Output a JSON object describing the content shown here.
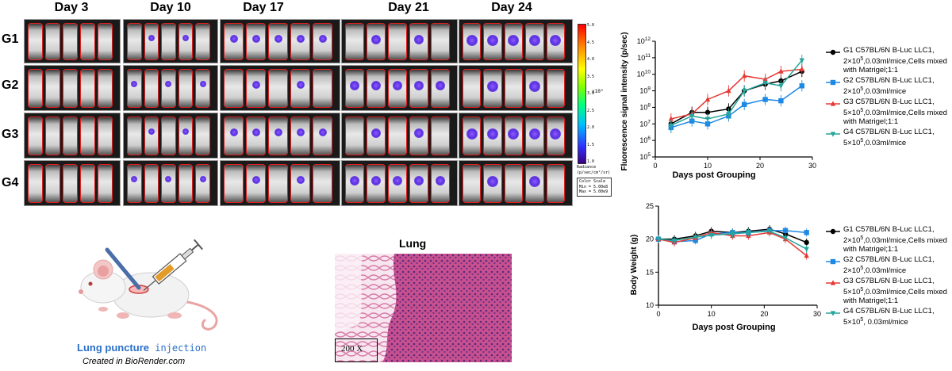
{
  "imaging": {
    "days": [
      "Day 3",
      "Day 10",
      "Day 17",
      "Day 21",
      "Day 24"
    ],
    "groups": [
      "G1",
      "G2",
      "G3",
      "G4"
    ],
    "colorbar": {
      "ticks": [
        "5.0",
        "4.5",
        "4.0",
        "3.5",
        "3.0",
        "2.5",
        "2.0",
        "1.5",
        "1.0"
      ],
      "multiplier": "x10⁹",
      "unit_label": "Radiance",
      "unit": "(p/sec/cm²/sr)",
      "scale_title": "Color Scale",
      "min": "Min = 5.00e8",
      "max": "Max = 5.00e9"
    }
  },
  "biorender": {
    "title_a": "Lung puncture",
    "title_b": " injection",
    "credit": "Created in BioRender.com"
  },
  "histology": {
    "title": "Lung",
    "magnification": "200 X"
  },
  "chart_data": [
    {
      "type": "line",
      "xlabel": "Days post Grouping",
      "ylabel": "Fluorescence signal intensity (p/sec)",
      "y_scale": "log",
      "xlim": [
        0,
        30
      ],
      "ylim_exp": [
        5,
        12
      ],
      "x_ticks": [
        "0",
        "10",
        "20",
        "30"
      ],
      "y_ticks": [
        "10^5",
        "10^6",
        "10^7",
        "10^8",
        "10^9",
        "10^10",
        "10^11",
        "10^12"
      ],
      "x": [
        3,
        7,
        10,
        14,
        17,
        21,
        24,
        28
      ],
      "series": [
        {
          "name": "G1 C57BL/6N B-Luc LLC1, 2×10^5,0.03ml/mice,Cells mixed with Matrigel;1:1",
          "color": "#000000",
          "marker": "circle",
          "values": [
            10000000.0,
            50000000.0,
            50000000.0,
            80000000.0,
            1000000000.0,
            2500000000.0,
            4000000000.0,
            15000000000.0
          ]
        },
        {
          "name": "G2 C57BL/6N B-Luc LLC1, 2×10^5,0.03ml/mice",
          "color": "#1e88e5",
          "marker": "square",
          "values": [
            6000000.0,
            15000000.0,
            10000000.0,
            30000000.0,
            150000000.0,
            300000000.0,
            250000000.0,
            2000000000.0
          ]
        },
        {
          "name": "G3 C57BL/6N B-Luc LLC1, 5×10^5,0.03ml/mice,Cells mixed with Matrigel;1:1",
          "color": "#e53935",
          "marker": "triangle",
          "values": [
            20000000.0,
            40000000.0,
            300000000.0,
            1000000000.0,
            8000000000.0,
            5000000000.0,
            15000000000.0,
            20000000000.0
          ]
        },
        {
          "name": "G4 C57BL/6N B-Luc LLC1, 5×10^5,0.03ml/mice",
          "color": "#26a69a",
          "marker": "triangle-down",
          "values": [
            8000000.0,
            30000000.0,
            20000000.0,
            40000000.0,
            1000000000.0,
            3000000000.0,
            2000000000.0,
            70000000000.0
          ]
        }
      ]
    },
    {
      "type": "line",
      "xlabel": "Days post Grouping",
      "ylabel": "Body Weight (g)",
      "xlim": [
        0,
        30
      ],
      "ylim": [
        10,
        25
      ],
      "x_ticks": [
        "0",
        "10",
        "20",
        "30"
      ],
      "y_ticks": [
        "10",
        "15",
        "20",
        "25"
      ],
      "x": [
        0,
        3,
        7,
        10,
        14,
        17,
        21,
        24,
        28
      ],
      "series": [
        {
          "name": "G1 C57BL/6N B-Luc LLC1, 2×10^5,0.03ml/mice,Cells mixed with Matrigel;1:1",
          "color": "#000000",
          "marker": "circle",
          "values": [
            20.0,
            20.0,
            20.5,
            21.2,
            21.0,
            21.2,
            21.5,
            20.8,
            19.5
          ]
        },
        {
          "name": "G2 C57BL/6N B-Luc LLC1, 2×10^5,0.03ml/mice",
          "color": "#1e88e5",
          "marker": "square",
          "values": [
            20.0,
            19.6,
            19.8,
            20.8,
            21.0,
            21.0,
            21.3,
            21.3,
            21.0
          ]
        },
        {
          "name": "G3 C57BL/6N B-Luc LLC1, 5×10^5,0.03ml/mice,Cells mixed with Matrigel;1:1",
          "color": "#e53935",
          "marker": "triangle",
          "values": [
            20.0,
            19.5,
            20.2,
            21.0,
            20.5,
            20.5,
            21.0,
            20.0,
            17.5
          ]
        },
        {
          "name": "G4 C57BL/6N B-Luc LLC1, 5×10^5, 0.03ml/mice",
          "color": "#26a69a",
          "marker": "triangle-down",
          "values": [
            20.0,
            19.8,
            20.3,
            20.6,
            20.8,
            21.0,
            21.2,
            20.2,
            18.5
          ]
        }
      ]
    }
  ]
}
